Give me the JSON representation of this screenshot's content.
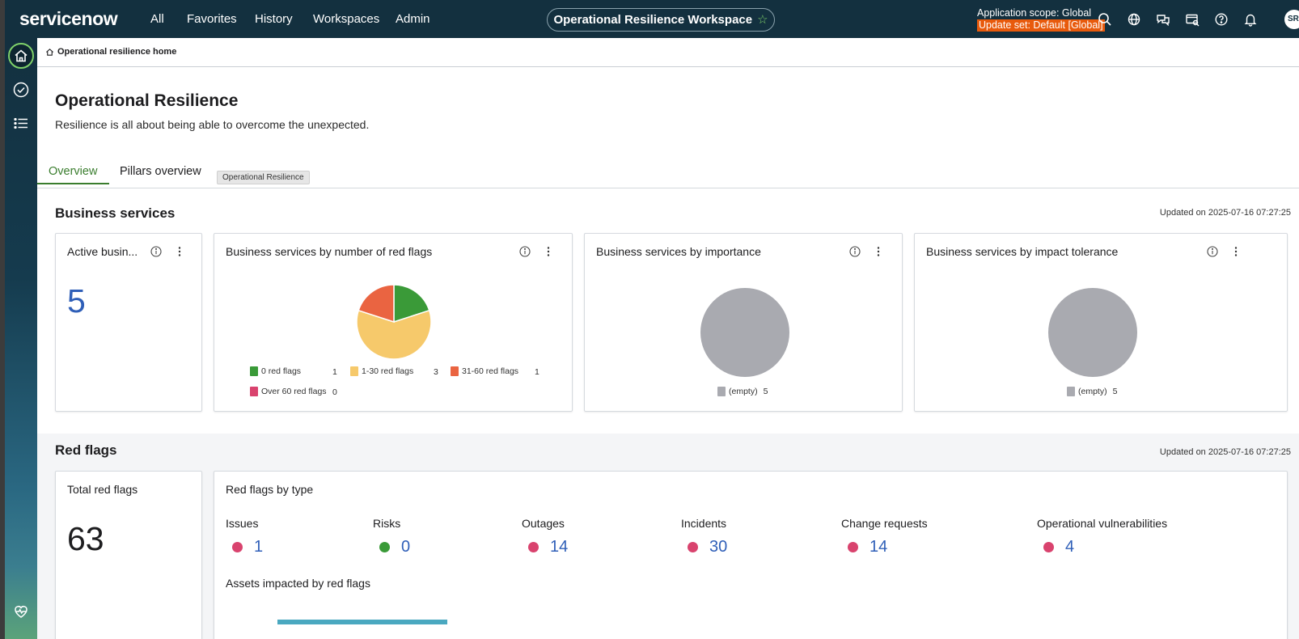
{
  "topbar": {
    "logo": "servicenow",
    "nav": [
      "All",
      "Favorites",
      "History",
      "Workspaces",
      "Admin"
    ],
    "workspace_title": "Operational Resilience Workspace",
    "workspace_star": "☆",
    "scope": "Application scope: Global",
    "update_set": "Update set: Default [Global]",
    "avatar_initials": "SR",
    "icons": [
      "search-icon",
      "globe-icon",
      "chat-icon",
      "card-search-icon",
      "help-icon",
      "bell-icon"
    ]
  },
  "sidebar": {
    "icons": [
      "home-icon",
      "check-circle-icon",
      "list-icon",
      "heart-pulse-icon"
    ]
  },
  "breadcrumb": {
    "label": "Operational resilience home"
  },
  "header": {
    "title": "Operational Resilience",
    "subtitle": "Resilience is all about being able to overcome the unexpected.",
    "tabs": [
      {
        "label": "Overview",
        "active": true
      },
      {
        "label": "Pillars overview",
        "active": false
      }
    ],
    "tooltip": "Operational Resilience"
  },
  "business_services": {
    "title": "Business services",
    "updated": "Updated on 2025-07-16 07:27:25",
    "active_card": {
      "title": "Active busin...",
      "value": "5"
    },
    "red_flags_card": {
      "title": "Business services by number of red flags",
      "legend": [
        {
          "label": "0 red flags",
          "count": "1",
          "color": "#3a9a38"
        },
        {
          "label": "1-30 red flags",
          "count": "3",
          "color": "#f6c96b"
        },
        {
          "label": "31-60 red flags",
          "count": "1",
          "color": "#ea6441"
        },
        {
          "label": "Over 60 red flags",
          "count": "0",
          "color": "#d9436e"
        }
      ]
    },
    "importance_card": {
      "title": "Business services by importance",
      "legend": [
        {
          "label": "(empty)",
          "count": "5",
          "color": "#a9aab0"
        }
      ]
    },
    "tolerance_card": {
      "title": "Business services by impact tolerance",
      "legend": [
        {
          "label": "(empty)",
          "count": "5",
          "color": "#a9aab0"
        }
      ]
    }
  },
  "red_flags": {
    "title": "Red flags",
    "updated": "Updated on 2025-07-16 07:27:25",
    "total_card": {
      "title": "Total red flags",
      "value": "63"
    },
    "by_type_card": {
      "title": "Red flags by type",
      "types": [
        {
          "label": "Issues",
          "value": "1",
          "color": "#d9436e"
        },
        {
          "label": "Risks",
          "value": "0",
          "color": "#3a9a38"
        },
        {
          "label": "Outages",
          "value": "14",
          "color": "#d9436e"
        },
        {
          "label": "Incidents",
          "value": "30",
          "color": "#d9436e"
        },
        {
          "label": "Change requests",
          "value": "14",
          "color": "#d9436e"
        },
        {
          "label": "Operational vulnerabilities",
          "value": "4",
          "color": "#d9436e"
        }
      ],
      "assets_title": "Assets impacted by red flags"
    }
  },
  "chart_data": [
    {
      "type": "pie",
      "title": "Business services by number of red flags",
      "categories": [
        "0 red flags",
        "1-30 red flags",
        "31-60 red flags",
        "Over 60 red flags"
      ],
      "values": [
        1,
        3,
        1,
        0
      ]
    },
    {
      "type": "pie",
      "title": "Business services by importance",
      "categories": [
        "(empty)"
      ],
      "values": [
        5
      ]
    },
    {
      "type": "pie",
      "title": "Business services by impact tolerance",
      "categories": [
        "(empty)"
      ],
      "values": [
        5
      ]
    }
  ]
}
